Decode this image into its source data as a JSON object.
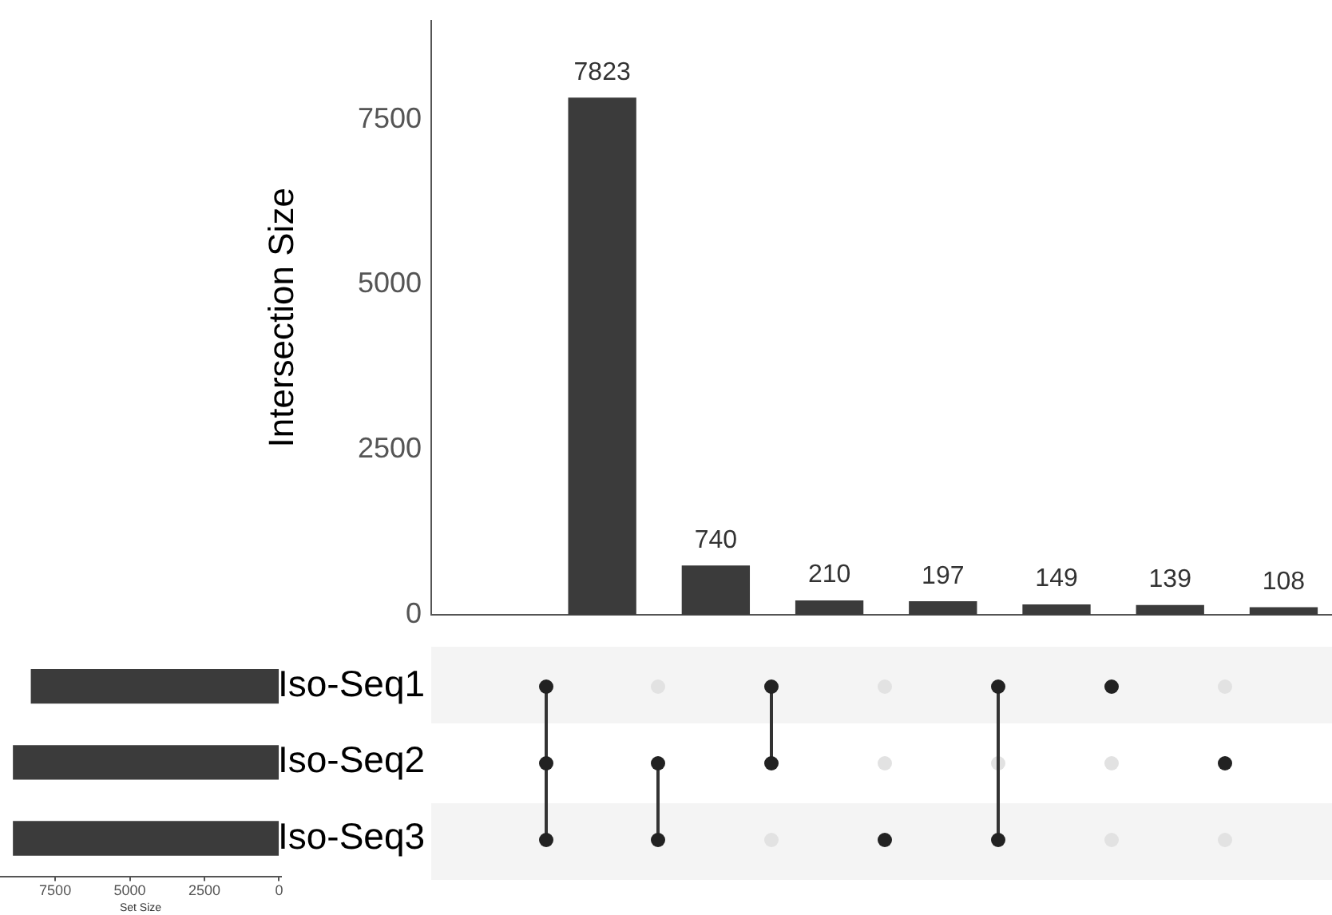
{
  "chart_data": [
    {
      "type": "bar",
      "ylabel": "Intersection Size",
      "categories": [
        null,
        null,
        null,
        null,
        null,
        null,
        null
      ],
      "values": [
        7823,
        740,
        210,
        197,
        149,
        139,
        108
      ],
      "color": "#3b3b3b",
      "ylim": [
        0,
        9000
      ],
      "yticks": [
        0,
        2500,
        5000,
        7500
      ],
      "data_labels": true
    },
    {
      "type": "bar",
      "orientation": "horizontal",
      "xlabel": "Set Size",
      "categories": [
        "Iso-Seq1",
        "Iso-Seq2",
        "Iso-Seq3"
      ],
      "values": [
        8300,
        8900,
        8900
      ],
      "color": "#3b3b3b",
      "xlim": [
        9350,
        -70
      ],
      "xticks": [
        7500,
        5000,
        2500,
        0
      ]
    }
  ]
}
